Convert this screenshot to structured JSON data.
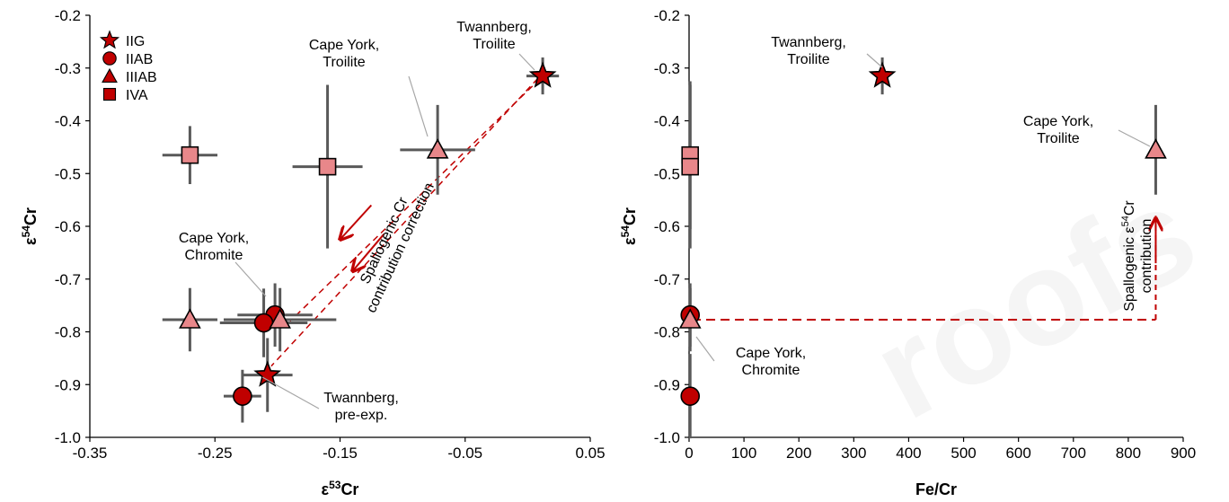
{
  "colors": {
    "iig": "#c00000",
    "iiab": "#c00000",
    "iiiab": "#e8878a",
    "iva": "#e8878a",
    "errorbar": "#595959",
    "arrow": "#c00000",
    "leader": "#a6a6a6"
  },
  "watermark": "roofs",
  "legend": {
    "placement": "top-left",
    "items": [
      {
        "label": "IIG",
        "marker": "star",
        "color": "#c00000"
      },
      {
        "label": "IIAB",
        "marker": "circle",
        "color": "#c00000"
      },
      {
        "label": "IIIAB",
        "marker": "triangle",
        "color": "#c00000"
      },
      {
        "label": "IVA",
        "marker": "square",
        "color": "#c00000"
      }
    ]
  },
  "chart_data": [
    {
      "type": "scatter",
      "title": "",
      "xlabel": "ε⁵³Cr",
      "ylabel": "ε⁵⁴Cr",
      "xlim": [
        -0.35,
        0.05
      ],
      "ylim": [
        -1.0,
        -0.2
      ],
      "xticks": [
        -0.35,
        -0.25,
        -0.15,
        -0.05,
        0.05
      ],
      "xtick_labels": [
        "-0.35",
        "-0.25",
        "-0.15",
        "-0.05",
        "0.05"
      ],
      "yticks": [
        -1.0,
        -0.9,
        -0.8,
        -0.7,
        -0.6,
        -0.5,
        -0.4,
        -0.3,
        -0.2
      ],
      "ytick_labels": [
        "-1.0",
        "-0.9",
        "-0.8",
        "-0.7",
        "-0.6",
        "-0.5",
        "-0.4",
        "-0.3",
        "-0.2"
      ],
      "grid": false,
      "series": [
        {
          "name": "IIG",
          "marker": "star",
          "color": "#c00000",
          "points": [
            {
              "x": 0.012,
              "y": -0.315,
              "xerr": 0.013,
              "yerr": 0.035
            },
            {
              "x": -0.208,
              "y": -0.882,
              "xerr": 0.02,
              "yerr": 0.07
            }
          ]
        },
        {
          "name": "IIAB",
          "marker": "circle",
          "color": "#c00000",
          "points": [
            {
              "x": -0.202,
              "y": -0.768,
              "xerr": 0.03,
              "yerr": 0.06
            },
            {
              "x": -0.211,
              "y": -0.783,
              "xerr": 0.035,
              "yerr": 0.065
            },
            {
              "x": -0.228,
              "y": -0.922,
              "xerr": 0.015,
              "yerr": 0.05
            }
          ]
        },
        {
          "name": "IIIAB",
          "marker": "triangle",
          "color": "#e8878a",
          "points": [
            {
              "x": -0.072,
              "y": -0.455,
              "xerr": 0.03,
              "yerr": 0.085
            },
            {
              "x": -0.198,
              "y": -0.777,
              "xerr": 0.045,
              "yerr": 0.06
            },
            {
              "x": -0.27,
              "y": -0.777,
              "xerr": 0.022,
              "yerr": 0.06
            }
          ]
        },
        {
          "name": "IVA",
          "marker": "square",
          "color": "#e8878a",
          "points": [
            {
              "x": -0.27,
              "y": -0.465,
              "xerr": 0.022,
              "yerr": 0.055
            },
            {
              "x": -0.16,
              "y": -0.487,
              "xerr": 0.028,
              "yerr": 0.155
            }
          ]
        }
      ],
      "annotations": [
        {
          "text": [
            "Twannberg,",
            "Troilite"
          ]
        },
        {
          "text": [
            "Cape York,",
            "Troilite"
          ]
        },
        {
          "text": [
            "Cape York,",
            "Chromite"
          ]
        },
        {
          "text": [
            "Twannberg,",
            "pre-exp."
          ]
        },
        {
          "text": [
            "Spallogenic Cr",
            "contribution correction"
          ]
        }
      ]
    },
    {
      "type": "scatter",
      "title": "",
      "xlabel": "Fe/Cr",
      "ylabel": "ε⁵⁴Cr",
      "xlim": [
        0,
        900
      ],
      "ylim": [
        -1.0,
        -0.2
      ],
      "xticks": [
        0,
        100,
        200,
        300,
        400,
        500,
        600,
        700,
        800,
        900
      ],
      "xtick_labels": [
        "0",
        "100",
        "200",
        "300",
        "400",
        "500",
        "600",
        "700",
        "800",
        "900"
      ],
      "yticks": [
        -1.0,
        -0.9,
        -0.8,
        -0.7,
        -0.6,
        -0.5,
        -0.4,
        -0.3,
        -0.2
      ],
      "ytick_labels": [
        "-1.0",
        "-0.9",
        "-0.8",
        "-0.7",
        "-0.6",
        "-0.5",
        "-0.4",
        "-0.3",
        "-0.2"
      ],
      "grid": false,
      "series": [
        {
          "name": "IIG",
          "marker": "star",
          "color": "#c00000",
          "points": [
            {
              "x": 352,
              "y": -0.315,
              "yerr": 0.035
            }
          ]
        },
        {
          "name": "IIAB",
          "marker": "circle",
          "color": "#c00000",
          "points": [
            {
              "x": 2,
              "y": -0.768,
              "yerr": 0.06
            },
            {
              "x": 2,
              "y": -0.922,
              "yerr": 0.08
            }
          ]
        },
        {
          "name": "IIIAB",
          "marker": "triangle",
          "color": "#e8878a",
          "points": [
            {
              "x": 850,
              "y": -0.455,
              "yerr": 0.085
            },
            {
              "x": 2,
              "y": -0.777,
              "yerr": 0.06
            }
          ]
        },
        {
          "name": "IVA",
          "marker": "square",
          "color": "#e8878a",
          "points": [
            {
              "x": 2,
              "y": -0.465,
              "yerr": 0.14
            },
            {
              "x": 2,
              "y": -0.487,
              "yerr": 0.155
            }
          ]
        }
      ],
      "annotations": [
        {
          "text": [
            "Twannberg,",
            "Troilite"
          ]
        },
        {
          "text": [
            "Cape York,",
            "Troilite"
          ]
        },
        {
          "text": [
            "Cape York,",
            "Chromite"
          ]
        },
        {
          "text": [
            "Spallogenic ε⁵⁴Cr",
            "contribution"
          ]
        }
      ]
    }
  ]
}
